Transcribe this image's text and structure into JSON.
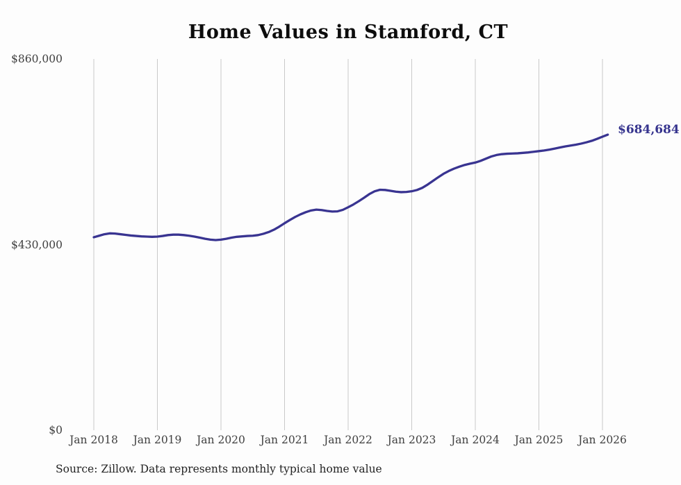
{
  "chart_data": {
    "type": "line",
    "title": "Home Values in Stamford, CT",
    "xlabel": "",
    "ylabel": "",
    "ylim": [
      0,
      860000
    ],
    "grid": "vertical-only",
    "legend_position": "none",
    "x_tick_labels": [
      "Jan 2018",
      "Jan 2019",
      "Jan 2020",
      "Jan 2021",
      "Jan 2022",
      "Jan 2023",
      "Jan 2024",
      "Jan 2025",
      "Jan 2026"
    ],
    "y_ticks": [
      {
        "value": 860000,
        "label": "$860,000"
      },
      {
        "value": 430000,
        "label": "$430,000"
      },
      {
        "value": 0,
        "label": "$0"
      }
    ],
    "series_name": "Typical home value (monthly)",
    "frequency": "monthly",
    "x_start": "Jan 2018",
    "x_end": "Feb 2026",
    "values": [
      447000,
      450500,
      454000,
      456000,
      455500,
      454000,
      452500,
      451000,
      450000,
      449000,
      448500,
      448000,
      448500,
      450000,
      452000,
      453000,
      453000,
      452000,
      450500,
      448500,
      446000,
      443500,
      441500,
      440500,
      441500,
      443500,
      446000,
      448000,
      449000,
      450000,
      450500,
      452000,
      455000,
      459000,
      464500,
      471500,
      479500,
      487000,
      494000,
      500000,
      505000,
      509000,
      511000,
      510000,
      508000,
      506500,
      507000,
      510500,
      516500,
      523000,
      530500,
      538500,
      547000,
      553500,
      557000,
      556500,
      554500,
      552500,
      551500,
      552000,
      553500,
      556500,
      561500,
      569000,
      577500,
      586000,
      594000,
      600500,
      606000,
      610500,
      614500,
      617500,
      620000,
      624000,
      629000,
      634000,
      637500,
      639500,
      640500,
      641000,
      641500,
      642500,
      643500,
      645000,
      646500,
      648000,
      650000,
      652500,
      655000,
      657500,
      659500,
      661500,
      664000,
      667000,
      670500,
      675000,
      680000,
      684684
    ],
    "end_label": "$684,684",
    "final_value": 684684,
    "source_note": "Source: Zillow. Data represents monthly typical home value",
    "colors": {
      "line": "#393491",
      "end_label": "#36348e",
      "gridline": "#c9c9c9",
      "axis_text": "#3f3f3f",
      "title_text": "#0d0d0d"
    }
  }
}
